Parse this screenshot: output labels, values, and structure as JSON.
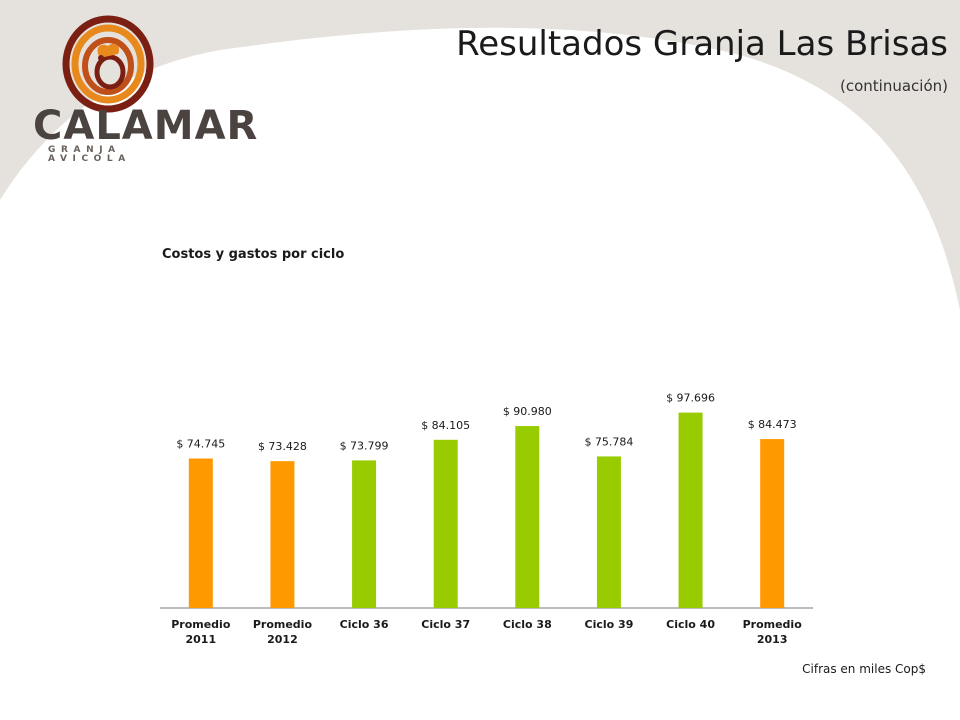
{
  "header": {
    "title": "Resultados Granja Las Brisas",
    "subtitle": "(continuación)"
  },
  "logo": {
    "brand": "CALAMAR",
    "tagline": "GRANJA AVICOLA"
  },
  "footer": {
    "note": "Cifras en miles Cop$"
  },
  "colors": {
    "background_swoosh": "#e5e1dd",
    "orange": "#ff9900",
    "green": "#99cc00",
    "axis": "#a6a6a6",
    "logo_ring_dark": "#7a1f12",
    "logo_ring_orange": "#e8891e"
  },
  "chart_data": {
    "type": "bar",
    "title": "Costos y gastos por ciclo",
    "categories": [
      [
        "Promedio",
        "2011"
      ],
      [
        "Promedio",
        "2012"
      ],
      [
        "Ciclo 36"
      ],
      [
        "Ciclo 37"
      ],
      [
        "Ciclo 38"
      ],
      [
        "Ciclo 39"
      ],
      [
        "Ciclo 40"
      ],
      [
        "Promedio",
        "2013"
      ]
    ],
    "values": [
      74745,
      73428,
      73799,
      84105,
      90980,
      75784,
      97696,
      84473
    ],
    "data_labels": [
      "$ 74.745",
      "$ 73.428",
      "$ 73.799",
      "$ 84.105",
      "$ 90.980",
      "$ 75.784",
      "$ 97.696",
      "$ 84.473"
    ],
    "bar_colors": [
      "#ff9900",
      "#ff9900",
      "#99cc00",
      "#99cc00",
      "#99cc00",
      "#99cc00",
      "#99cc00",
      "#ff9900"
    ],
    "ylim": [
      0,
      105000
    ],
    "grid": false,
    "legend": "none",
    "xlabel": "",
    "ylabel": ""
  }
}
